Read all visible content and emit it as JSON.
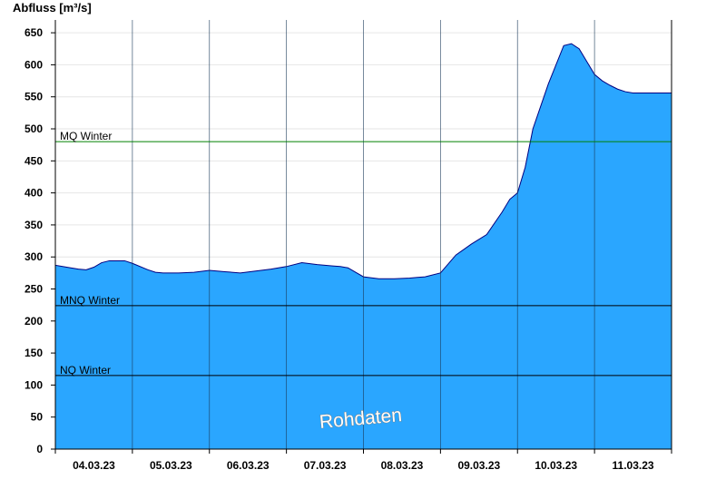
{
  "chart_data": {
    "type": "area",
    "title": "",
    "ylabel": "Abfluss [m³/s]",
    "xlabel": "",
    "ylim": [
      0,
      670
    ],
    "yticks": [
      0,
      50,
      100,
      150,
      200,
      250,
      300,
      350,
      400,
      450,
      500,
      550,
      600,
      650
    ],
    "x_day_labels": [
      "04.03.23",
      "05.03.23",
      "06.03.23",
      "07.03.23",
      "08.03.23",
      "09.03.23",
      "10.03.23",
      "11.03.23"
    ],
    "x_range_days": [
      3.0,
      11.0
    ],
    "grid": true,
    "fill_color": "#2aa6ff",
    "line_color": "#000080",
    "series": [
      {
        "name": "",
        "x_days": [
          3.0,
          3.2,
          3.3,
          3.4,
          3.5,
          3.6,
          3.7,
          3.9,
          4.0,
          4.2,
          4.3,
          4.4,
          4.6,
          4.8,
          5.0,
          5.2,
          5.4,
          5.6,
          5.8,
          6.0,
          6.2,
          6.4,
          6.6,
          6.7,
          6.8,
          6.9,
          7.0,
          7.2,
          7.4,
          7.6,
          7.7,
          7.8,
          8.0,
          8.2,
          8.4,
          8.6,
          8.8,
          8.9,
          9.0,
          9.1,
          9.2,
          9.4,
          9.6,
          9.7,
          9.8,
          9.9,
          10.0,
          10.1,
          10.2,
          10.3,
          10.4,
          10.5,
          10.6,
          10.7,
          10.8,
          10.9,
          11.0
        ],
        "values": [
          287,
          283,
          281,
          280,
          284,
          291,
          294,
          294,
          290,
          280,
          276,
          275,
          275,
          276,
          279,
          277,
          275,
          278,
          281,
          285,
          291,
          288,
          286,
          285,
          283,
          276,
          269,
          266,
          266,
          267,
          268,
          269,
          275,
          303,
          320,
          335,
          370,
          390,
          400,
          440,
          500,
          570,
          630,
          633,
          625,
          605,
          585,
          575,
          568,
          562,
          558,
          556,
          556,
          556,
          556,
          556,
          556
        ]
      }
    ],
    "reference_lines": [
      {
        "label": "MQ Winter",
        "value": 480,
        "color": "#008000"
      },
      {
        "label": "MNQ Winter",
        "value": 224,
        "color": "#000000"
      },
      {
        "label": "NQ Winter",
        "value": 115,
        "color": "#000000"
      }
    ],
    "watermark": "Rohdaten"
  }
}
